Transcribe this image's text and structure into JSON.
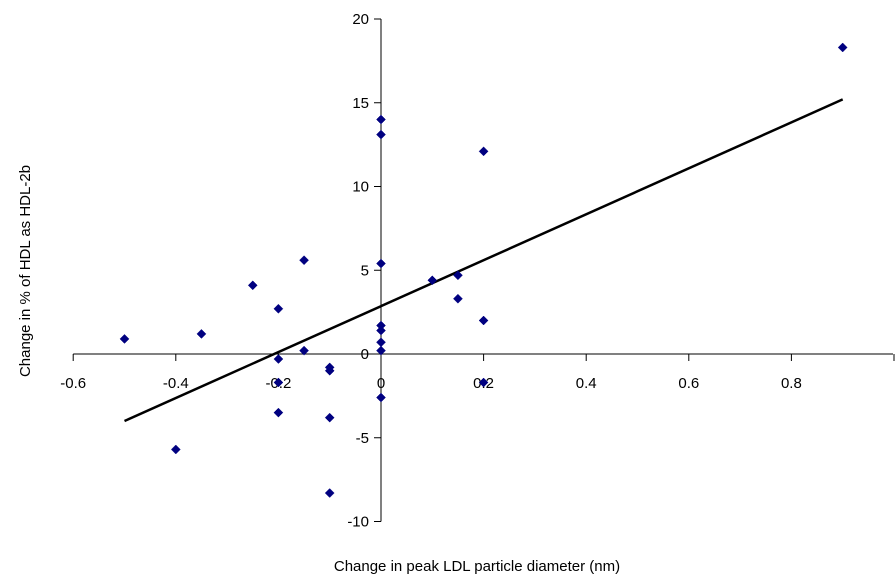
{
  "chart_data": {
    "type": "scatter",
    "title": "",
    "xlabel": "Change in peak LDL particle diameter (nm)",
    "ylabel": "Change in % of HDL as HDL-2b",
    "xlim": [
      -0.6,
      1.0
    ],
    "ylim": [
      -10,
      20
    ],
    "x_ticks": [
      -0.6,
      -0.4,
      -0.2,
      0,
      0.2,
      0.4,
      0.6,
      0.8
    ],
    "x_tick_labels": [
      "-0.6",
      "-0.4",
      "-0.2",
      "0",
      "0.2",
      "0.4",
      "0.6",
      "0.8"
    ],
    "y_ticks": [
      -10,
      -5,
      0,
      5,
      10,
      15,
      20
    ],
    "y_tick_labels": [
      "-10",
      "-5",
      "0",
      "5",
      "10",
      "15",
      "20"
    ],
    "grid": false,
    "legend": "none",
    "marker": "diamond",
    "marker_color": "#000080",
    "line_color": "#000000",
    "points": [
      {
        "x": -0.5,
        "y": 0.9
      },
      {
        "x": -0.4,
        "y": -5.7
      },
      {
        "x": -0.35,
        "y": 1.2
      },
      {
        "x": -0.25,
        "y": 4.1
      },
      {
        "x": -0.2,
        "y": 2.7
      },
      {
        "x": -0.2,
        "y": -0.3
      },
      {
        "x": -0.2,
        "y": -1.7
      },
      {
        "x": -0.2,
        "y": -3.5
      },
      {
        "x": -0.15,
        "y": 5.6
      },
      {
        "x": -0.15,
        "y": 0.2
      },
      {
        "x": -0.1,
        "y": -0.8
      },
      {
        "x": -0.1,
        "y": -1.0
      },
      {
        "x": -0.1,
        "y": -3.8
      },
      {
        "x": -0.1,
        "y": -8.3
      },
      {
        "x": 0,
        "y": 14.0
      },
      {
        "x": 0,
        "y": 13.1
      },
      {
        "x": 0,
        "y": 5.4
      },
      {
        "x": 0,
        "y": 1.7
      },
      {
        "x": 0,
        "y": 1.4
      },
      {
        "x": 0,
        "y": 0.7
      },
      {
        "x": 0,
        "y": 0.2
      },
      {
        "x": 0,
        "y": -2.6
      },
      {
        "x": 0.1,
        "y": 4.4
      },
      {
        "x": 0.15,
        "y": 4.7
      },
      {
        "x": 0.15,
        "y": 3.3
      },
      {
        "x": 0.2,
        "y": 12.1
      },
      {
        "x": 0.2,
        "y": 2.0
      },
      {
        "x": 0.2,
        "y": -1.7
      },
      {
        "x": 0.9,
        "y": 18.3
      }
    ],
    "trendline": {
      "x": [
        -0.5,
        0.9
      ],
      "y": [
        -4.0,
        15.2
      ]
    }
  }
}
